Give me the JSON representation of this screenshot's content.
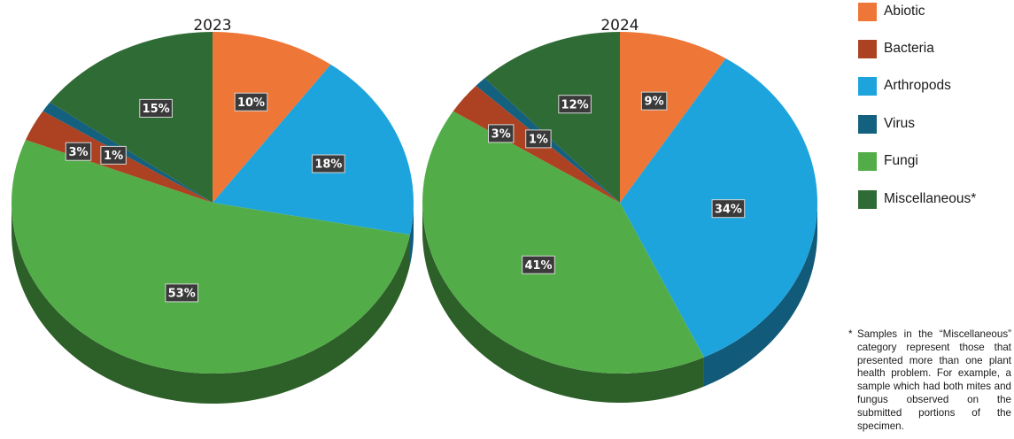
{
  "chart_data": [
    {
      "type": "pie",
      "title": "2023",
      "slices": [
        {
          "label": "Abiotic",
          "value": 10,
          "display": "10%"
        },
        {
          "label": "Arthropods",
          "value": 18,
          "display": "18%"
        },
        {
          "label": "Fungi",
          "value": 53,
          "display": "53%"
        },
        {
          "label": "Bacteria",
          "value": 3,
          "display": "3%"
        },
        {
          "label": "Virus",
          "value": 1,
          "display": "1%"
        },
        {
          "label": "Miscellaneous*",
          "value": 15,
          "display": "15%"
        }
      ]
    },
    {
      "type": "pie",
      "title": "2024",
      "slices": [
        {
          "label": "Abiotic",
          "value": 9,
          "display": "9%"
        },
        {
          "label": "Arthropods",
          "value": 34,
          "display": "34%"
        },
        {
          "label": "Fungi",
          "value": 41,
          "display": "41%"
        },
        {
          "label": "Bacteria",
          "value": 3,
          "display": "3%"
        },
        {
          "label": "Virus",
          "value": 1,
          "display": "1%"
        },
        {
          "label": "Miscellaneous*",
          "value": 12,
          "display": "12%"
        }
      ]
    }
  ],
  "legend": {
    "placement": "right",
    "items": [
      {
        "label": "Abiotic",
        "color": "#ee7636"
      },
      {
        "label": "Bacteria",
        "color": "#ad4223"
      },
      {
        "label": "Arthropods",
        "color": "#1ea4dc"
      },
      {
        "label": "Virus",
        "color": "#14607f"
      },
      {
        "label": "Fungi",
        "color": "#52ad48"
      },
      {
        "label": "Miscellaneous*",
        "color": "#2f6b35"
      }
    ]
  },
  "footnote": {
    "marker": "*",
    "text": "Samples in the “Miscellaneous” category represent those that presented more than one plant health problem. For example, a sample which had both mites and fungus observed on the submitted portions of the specimen."
  }
}
